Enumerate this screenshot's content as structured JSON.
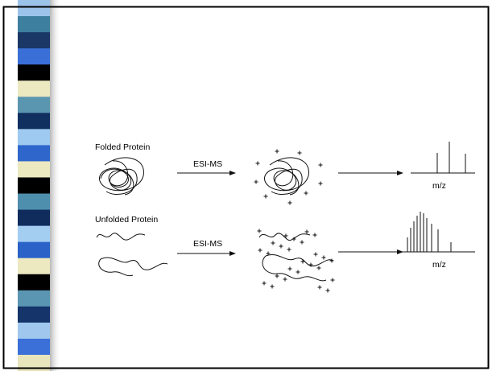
{
  "rows": [
    {
      "label": "Folded Protein",
      "method": "ESI-MS",
      "axis": "m/z"
    },
    {
      "label": "Unfolded Protein",
      "method": "ESI-MS",
      "axis": "m/z"
    }
  ]
}
